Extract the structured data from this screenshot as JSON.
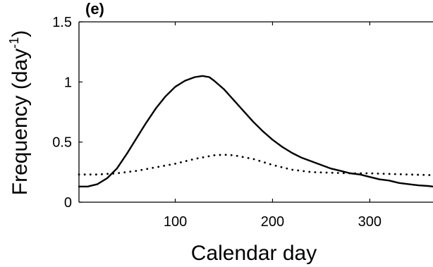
{
  "chart_data": {
    "type": "line",
    "panel_label": "(e)",
    "xlabel": "Calendar day",
    "ylabel": "Frequency (day",
    "ylabel_sup": "-1",
    "ylabel_close": ")",
    "xlim": [
      1,
      365
    ],
    "ylim": [
      0,
      1.5
    ],
    "xticks": [
      100,
      200,
      300
    ],
    "xtick_labels": [
      "100",
      "200",
      "300"
    ],
    "yticks": [
      0,
      0.5,
      1,
      1.5
    ],
    "ytick_labels": [
      "0",
      "0.5",
      "1",
      "1.5"
    ],
    "grid": false,
    "series": [
      {
        "style": "solid",
        "color": "#000000",
        "x": [
          1,
          10,
          20,
          30,
          40,
          50,
          60,
          70,
          80,
          90,
          100,
          110,
          120,
          128,
          135,
          140,
          150,
          160,
          170,
          180,
          190,
          200,
          210,
          220,
          230,
          240,
          250,
          260,
          270,
          280,
          290,
          300,
          310,
          320,
          330,
          340,
          350,
          360,
          365
        ],
        "y": [
          0.13,
          0.13,
          0.15,
          0.2,
          0.28,
          0.4,
          0.53,
          0.66,
          0.78,
          0.88,
          0.96,
          1.01,
          1.04,
          1.05,
          1.04,
          1.01,
          0.94,
          0.85,
          0.76,
          0.67,
          0.59,
          0.52,
          0.46,
          0.41,
          0.37,
          0.34,
          0.31,
          0.28,
          0.26,
          0.24,
          0.23,
          0.21,
          0.19,
          0.18,
          0.16,
          0.15,
          0.14,
          0.135,
          0.13
        ]
      },
      {
        "style": "dotted",
        "color": "#000000",
        "x": [
          1,
          20,
          40,
          60,
          80,
          100,
          120,
          140,
          150,
          160,
          180,
          200,
          220,
          240,
          260,
          280,
          300,
          320,
          340,
          365
        ],
        "y": [
          0.23,
          0.23,
          0.24,
          0.26,
          0.29,
          0.32,
          0.36,
          0.39,
          0.395,
          0.39,
          0.36,
          0.31,
          0.27,
          0.25,
          0.245,
          0.24,
          0.24,
          0.235,
          0.23,
          0.225
        ]
      }
    ]
  }
}
